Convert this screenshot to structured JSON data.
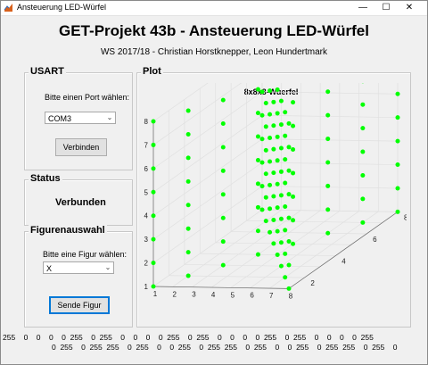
{
  "window": {
    "title": "Ansteuerung LED-Würfel",
    "min": "—",
    "max": "☐",
    "close": "✕"
  },
  "header": {
    "title": "GET-Projekt 43b - Ansteuerung LED-Würfel",
    "subtitle": "WS 2017/18 - Christian Horstknepper, Leon Hundertmark"
  },
  "usart": {
    "title": "USART",
    "port_label": "Bitte einen Port wählen:",
    "port_value": "COM3",
    "connect_label": "Verbinden"
  },
  "status": {
    "title": "Status",
    "value": "Verbunden"
  },
  "figure": {
    "title": "Figurenauswahl",
    "prompt": "Bitte eine Figur wählen:",
    "value": "X",
    "send_label": "Sende Figur"
  },
  "plot": {
    "title": "Plot",
    "chart_title": "8x8x8-Wuerfel",
    "z_ticks": [
      "1",
      "2",
      "3",
      "4",
      "5",
      "6",
      "7",
      "8"
    ],
    "x_ticks": [
      "1",
      "2",
      "3",
      "4",
      "5",
      "6",
      "7",
      "8"
    ],
    "y_ticks": [
      "2",
      "4",
      "6",
      "8"
    ],
    "point_color": "#00ff00"
  },
  "chart_data": {
    "type": "scatter",
    "title": "8x8x8-Wuerfel",
    "xlim": [
      1,
      8
    ],
    "ylim": [
      1,
      8
    ],
    "zlim": [
      1,
      8
    ],
    "xlabel": "",
    "ylabel": "",
    "zlabel": "",
    "grid": true,
    "pattern": "X"
  },
  "footer": {
    "line1": "255    0    0    0    0  255    0  255    0    0    0    0  255    0  255    0    0    0    0  255    0  255    0    0    0    0  255",
    "line2": "0  255    0  255  255    0  255    0    0  255    0  255  255    0  255    0    0  255    0  255  255    0  255    0"
  }
}
